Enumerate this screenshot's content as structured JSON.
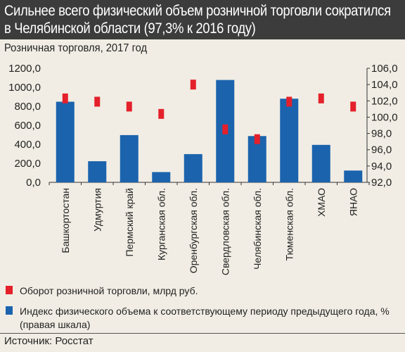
{
  "title": "Сильнее всего физический объем розничной торговли сократился в Челябинской области (97,3% к 2016 году)",
  "subtitle": "Розничная торговля, 2017 год",
  "source": "Источник: Росстат",
  "colors": {
    "turnover": "#e4202a",
    "index": "#1b63ad",
    "header_bg": "#3c3c3c",
    "page_bg": "#f1ede4"
  },
  "chart_data": {
    "type": "bar",
    "categories": [
      "Башкортостан",
      "Удмуртия",
      "Пермский край",
      "Курганская обл.",
      "Оренбургская обл.",
      "Свердловская обл.",
      "Челябинская обл.",
      "Тюменская обл.",
      "ХМАО",
      "ЯНАО"
    ],
    "series": [
      {
        "name": "Оборот розничной торговли, млрд руб.",
        "axis": "left",
        "mark": "bar",
        "values": [
          848,
          222,
          497,
          108,
          297,
          1077,
          487,
          880,
          394,
          124
        ]
      },
      {
        "name": "Индекс физического объема  к соответствующему периоду предыдущего года, % (правая шкала)",
        "axis": "right",
        "mark": "marker",
        "values": [
          102.3,
          101.9,
          101.3,
          100.4,
          104.0,
          98.5,
          97.3,
          101.9,
          102.3,
          101.3
        ]
      }
    ],
    "y_left": {
      "ylim": [
        0,
        1200
      ],
      "ticks": [
        "0,0",
        "200,0",
        "400,0",
        "600,0",
        "800,0",
        "1000,0",
        "1200,0"
      ]
    },
    "y_right": {
      "ylim": [
        92,
        106
      ],
      "ticks": [
        "92,0",
        "94,0",
        "96,0",
        "98,0",
        "100,0",
        "102,0",
        "104,0",
        "106,0"
      ]
    },
    "grid": false,
    "legend_position": "bottom"
  }
}
